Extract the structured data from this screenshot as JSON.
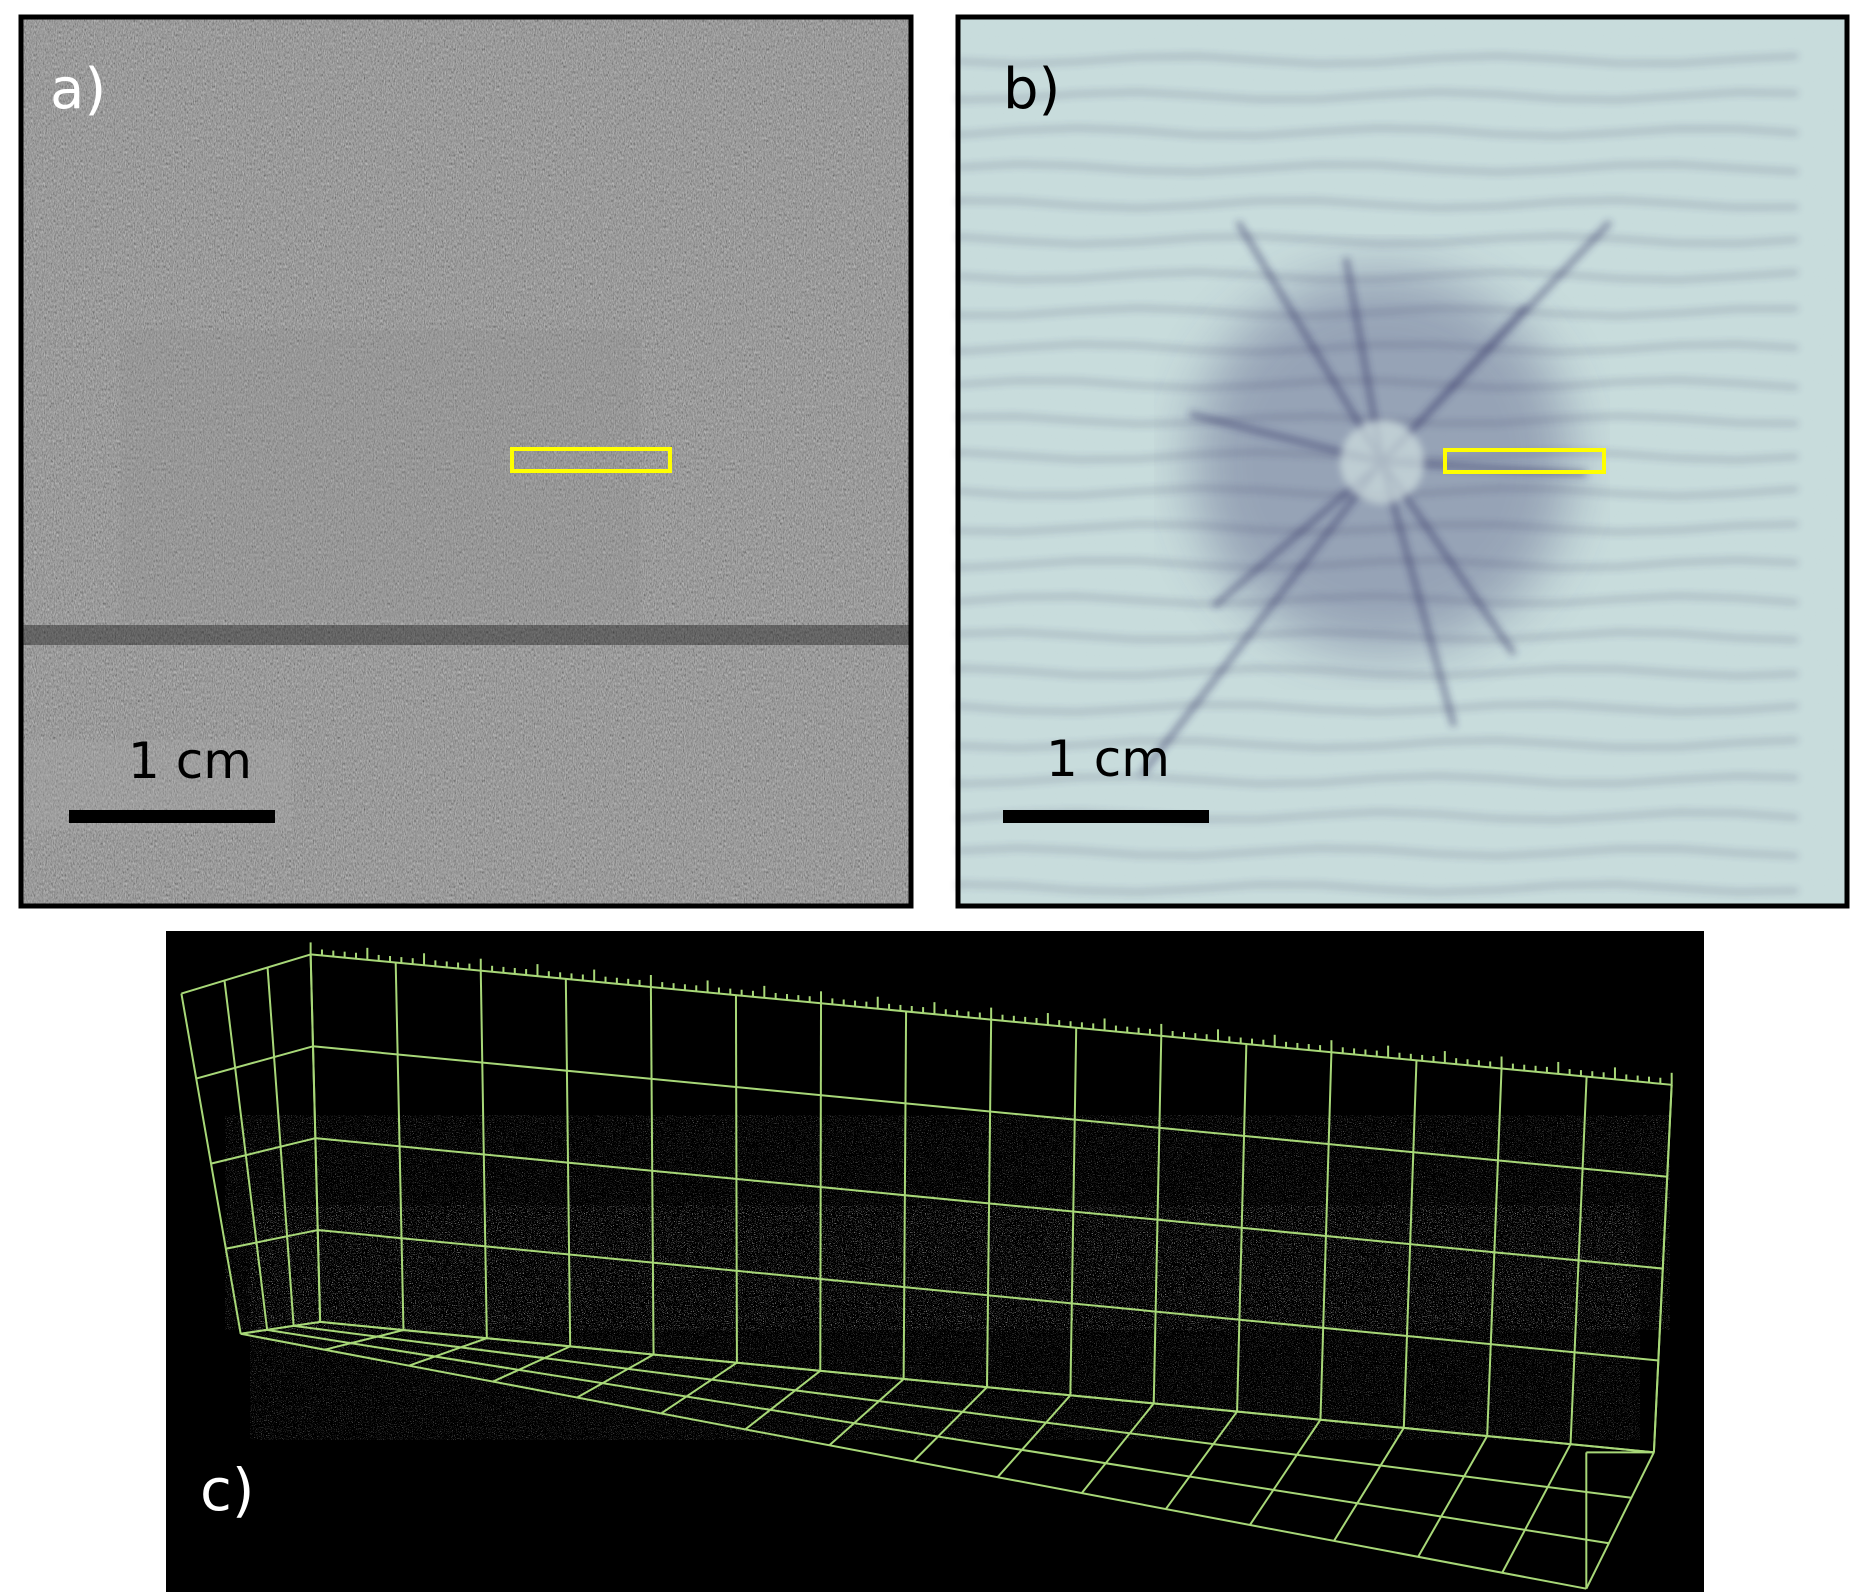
{
  "panels": [
    {
      "label": "a)",
      "scale_bar": "1 cm"
    },
    {
      "label": "b)",
      "scale_bar": "1 cm"
    },
    {
      "label": "c)"
    }
  ]
}
